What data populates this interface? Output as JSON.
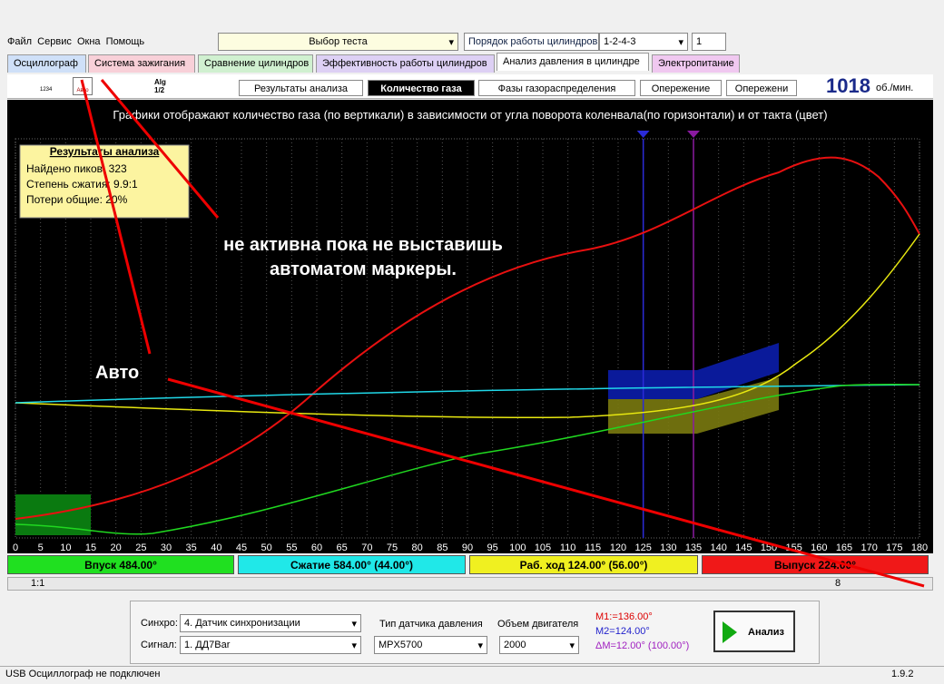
{
  "menu": [
    "Файл",
    "Сервис",
    "Окна",
    "Помощь"
  ],
  "test_combo": "Выбор теста",
  "cylinder_order": {
    "label": "Порядок работы цилиндров",
    "value": "1-2-4-3",
    "spin": "1"
  },
  "tabs": [
    "Осциллограф",
    "Система зажигания",
    "Сравнение цилиндров",
    "Эффективность работы цилиндров",
    "Анализ давления в цилиндре",
    "Электропитание"
  ],
  "icon_labels": [
    "1234",
    "Авто",
    "Alg",
    "1/2"
  ],
  "subtabs": [
    "Результаты анализа",
    "Количество газа",
    "Фазы газораспределения",
    "Опережение",
    "Опережени"
  ],
  "rpm": {
    "value": 1018,
    "unit": "об./мин."
  },
  "chart": {
    "title": "Графики отображают количество газа (по вертикали) в зависимости от угла поворота коленвала(по горизонтали) и от такта (цвет)",
    "results": {
      "title": "Результаты анализа",
      "lines": [
        "Найдено пиков: 323",
        "Степень сжатия: 9.9:1",
        "Потери общие: 20%"
      ]
    },
    "annotation": [
      "не активна пока не выставишь",
      "автоматом маркеры."
    ],
    "auto_label": "Авто",
    "xlim": [
      0,
      180
    ],
    "xticks": [
      0,
      5,
      10,
      15,
      20,
      25,
      30,
      35,
      40,
      45,
      50,
      55,
      60,
      65,
      70,
      75,
      80,
      85,
      90,
      95,
      100,
      105,
      110,
      115,
      120,
      125,
      130,
      135,
      140,
      145,
      150,
      155,
      160,
      165,
      170,
      175,
      180
    ],
    "markers": [
      {
        "x": 125,
        "color": "#2b2bd8"
      },
      {
        "x": 135,
        "color": "#8a1aa0"
      }
    ]
  },
  "phases": [
    "Впуск 484.00°",
    "Сжатие 584.00° (44.00°)",
    "Раб. ход 124.00° (56.00°)",
    "Выпуск 224.00°"
  ],
  "zoom": "1:1",
  "page": 8,
  "settings": {
    "sync_label": "Синхро:",
    "sync": "4. Датчик синхронизации",
    "signal_label": "Сигнал:",
    "signal": "1. ДД7Bar",
    "sensor_label": "Тип датчика давления",
    "sensor": "MPX5700",
    "volume_label": "Объем двигателя",
    "volume": "2000"
  },
  "marker_info": [
    "M1:=136.00°",
    "M2=124.00°",
    "ΔM=12.00° (100.00°)"
  ],
  "analyze_button": "Анализ",
  "status": {
    "message": "USB Осциллограф не подключен",
    "version": "1.9.2"
  }
}
